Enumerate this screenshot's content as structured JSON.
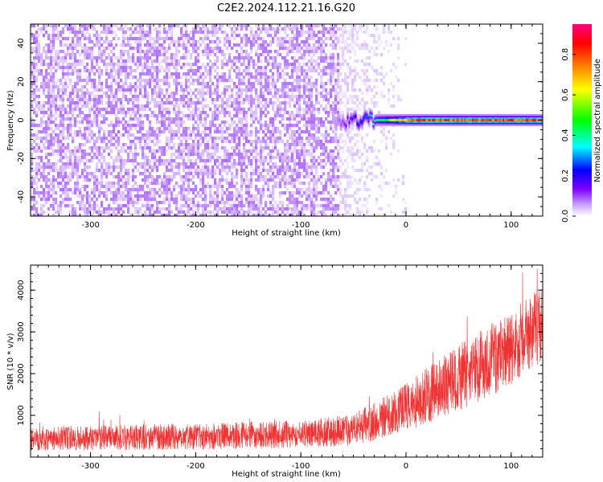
{
  "title": "C2E2.2024.112.21.16.G20",
  "chart_data": [
    {
      "type": "heatmap",
      "xlabel": "Height of straight line (km)",
      "ylabel": "Frequency (Hz)",
      "xlim": [
        -357,
        130
      ],
      "ylim": [
        -50,
        50
      ],
      "x_ticks": [
        -300,
        -200,
        -100,
        0,
        100
      ],
      "y_ticks": [
        -40,
        -20,
        0,
        20,
        40
      ],
      "colorbar": {
        "label": "Normalized spectral amplitude",
        "range": [
          0,
          0.95
        ],
        "ticks": [
          0.0,
          0.2,
          0.4,
          0.6,
          0.8
        ],
        "palette": [
          "#ffffff",
          "#c8a0ff",
          "#8000ff",
          "#0000ff",
          "#00ffff",
          "#00ff00",
          "#ffff00",
          "#ff8000",
          "#ff0000",
          "#ff0080"
        ]
      },
      "description_values": {
        "noise_region_x": [
          -357,
          -65
        ],
        "noise_amplitude_approx": 0.05,
        "fade_region_x": [
          -65,
          0
        ],
        "signal_line_freq_hz": 0,
        "signal_region_x": [
          -70,
          130
        ],
        "signal_peak_amplitude": 0.85
      }
    },
    {
      "type": "line",
      "xlabel": "Height of straight line (km)",
      "ylabel": "SNR (10 * v/v)",
      "xlim": [
        -357,
        130
      ],
      "ylim": [
        0,
        4600
      ],
      "x_ticks": [
        -300,
        -200,
        -100,
        0,
        100
      ],
      "y_ticks": [
        1000,
        2000,
        3000,
        4000
      ],
      "series_color": "#f03232",
      "trend": [
        {
          "x": -357,
          "mean": 450,
          "spread": 300
        },
        {
          "x": -300,
          "mean": 450,
          "spread": 300
        },
        {
          "x": -200,
          "mean": 500,
          "spread": 320
        },
        {
          "x": -100,
          "mean": 550,
          "spread": 330
        },
        {
          "x": -50,
          "mean": 650,
          "spread": 380
        },
        {
          "x": 0,
          "mean": 1200,
          "spread": 600
        },
        {
          "x": 50,
          "mean": 1900,
          "spread": 800
        },
        {
          "x": 100,
          "mean": 2600,
          "spread": 900
        },
        {
          "x": 130,
          "mean": 3200,
          "spread": 900
        }
      ]
    }
  ]
}
